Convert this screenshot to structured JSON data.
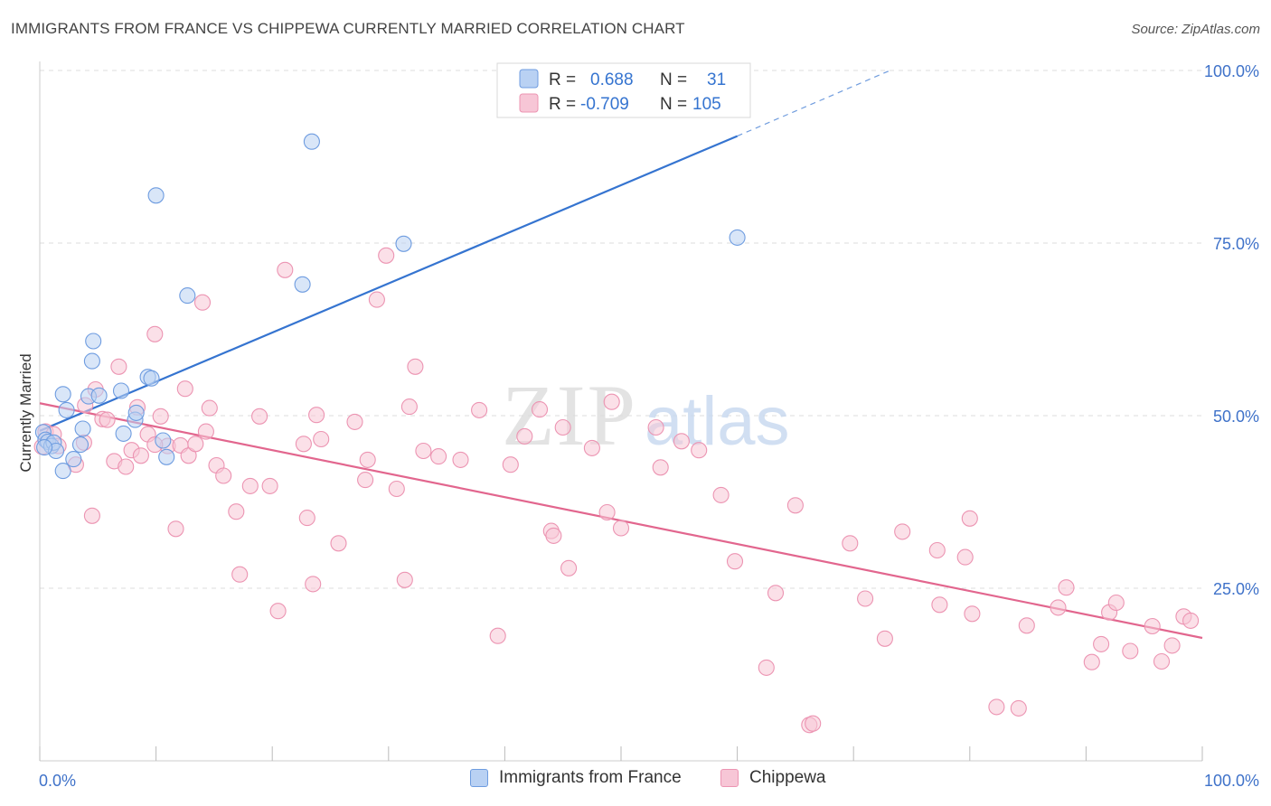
{
  "title": "IMMIGRANTS FROM FRANCE VS CHIPPEWA CURRENTLY MARRIED CORRELATION CHART",
  "source": "Source: ZipAtlas.com",
  "watermark": {
    "zip": "ZIP",
    "atlas": "atlas"
  },
  "colors": {
    "blue": "#3574d0",
    "blue_fill": "#b9d1f3",
    "blue_stroke": "#6e9ce0",
    "pink": "#e2668e",
    "pink_fill": "#f7c6d6",
    "pink_stroke": "#ec94b2",
    "axis_text": "#3f72c9",
    "grid": "#dddddd"
  },
  "legend_top": [
    {
      "r_label": "R = ",
      "r_value": "0.688",
      "n_label": "N = ",
      "n_value": "31",
      "color": "blue"
    },
    {
      "r_label": "R = ",
      "r_value": "-0.709",
      "n_label": "N = ",
      "n_value": "105",
      "color": "pink"
    }
  ],
  "legend_bottom": [
    {
      "label": "Immigrants from France",
      "color": "blue"
    },
    {
      "label": "Chippewa",
      "color": "pink"
    }
  ],
  "chart_data": {
    "type": "scatter",
    "xlabel": "",
    "ylabel": "Currently Married",
    "xlim": [
      0,
      100
    ],
    "ylim": [
      0,
      100
    ],
    "x_tick_labels": [
      "0.0%",
      "100.0%"
    ],
    "y_tick_labels": [
      {
        "value": 25,
        "label": "25.0%"
      },
      {
        "value": 50,
        "label": "50.0%"
      },
      {
        "value": 75,
        "label": "75.0%"
      },
      {
        "value": 100,
        "label": "100.0%"
      }
    ],
    "grid": true,
    "legend_position": "top-center",
    "series": [
      {
        "name": "Immigrants from France",
        "color": "blue",
        "trend": {
          "x0": 0,
          "y0": 47.8,
          "x1": 60,
          "y1": 90.5,
          "dash_to_x": 73,
          "dash_to_y": 99.9
        },
        "points": [
          [
            0.3,
            47.6
          ],
          [
            0.5,
            46.5
          ],
          [
            0.7,
            46.2
          ],
          [
            1.0,
            45.6
          ],
          [
            1.2,
            46.1
          ],
          [
            1.4,
            44.9
          ],
          [
            2.0,
            53.1
          ],
          [
            2.3,
            50.8
          ],
          [
            2.0,
            42.0
          ],
          [
            2.9,
            43.7
          ],
          [
            3.5,
            45.8
          ],
          [
            3.7,
            48.1
          ],
          [
            4.2,
            52.8
          ],
          [
            4.5,
            57.9
          ],
          [
            4.6,
            60.8
          ],
          [
            5.1,
            52.9
          ],
          [
            7.0,
            53.6
          ],
          [
            7.2,
            47.4
          ],
          [
            8.2,
            49.4
          ],
          [
            8.3,
            50.4
          ],
          [
            9.3,
            55.6
          ],
          [
            9.6,
            55.4
          ],
          [
            10.0,
            81.9
          ],
          [
            10.6,
            46.4
          ],
          [
            10.9,
            44.0
          ],
          [
            12.7,
            67.4
          ],
          [
            22.6,
            69.0
          ],
          [
            23.4,
            89.7
          ],
          [
            31.3,
            74.9
          ],
          [
            60.0,
            75.8
          ],
          [
            0.4,
            45.4
          ]
        ]
      },
      {
        "name": "Chippewa",
        "color": "pink",
        "trend": {
          "x0": 0,
          "y0": 51.8,
          "x1": 100,
          "y1": 17.8
        },
        "points": [
          [
            0.2,
            45.5
          ],
          [
            0.5,
            47.7
          ],
          [
            1.2,
            47.3
          ],
          [
            1.6,
            45.6
          ],
          [
            3.1,
            42.9
          ],
          [
            3.8,
            46.1
          ],
          [
            3.9,
            51.5
          ],
          [
            4.5,
            35.5
          ],
          [
            4.8,
            53.8
          ],
          [
            5.4,
            49.5
          ],
          [
            5.8,
            49.4
          ],
          [
            6.4,
            43.4
          ],
          [
            6.8,
            57.1
          ],
          [
            7.4,
            42.6
          ],
          [
            7.9,
            45.0
          ],
          [
            8.4,
            51.2
          ],
          [
            8.7,
            44.2
          ],
          [
            9.3,
            47.3
          ],
          [
            9.9,
            61.8
          ],
          [
            10.4,
            49.9
          ],
          [
            11.0,
            45.6
          ],
          [
            11.7,
            33.6
          ],
          [
            12.1,
            45.7
          ],
          [
            12.5,
            53.9
          ],
          [
            12.8,
            44.2
          ],
          [
            13.4,
            45.9
          ],
          [
            14.0,
            66.4
          ],
          [
            14.3,
            47.7
          ],
          [
            14.6,
            51.1
          ],
          [
            15.2,
            42.8
          ],
          [
            15.8,
            41.3
          ],
          [
            16.9,
            36.1
          ],
          [
            17.2,
            27.0
          ],
          [
            18.1,
            39.8
          ],
          [
            18.9,
            49.9
          ],
          [
            19.8,
            39.8
          ],
          [
            20.5,
            21.7
          ],
          [
            21.1,
            71.1
          ],
          [
            22.7,
            45.9
          ],
          [
            23.0,
            35.2
          ],
          [
            23.5,
            25.6
          ],
          [
            23.8,
            50.1
          ],
          [
            24.2,
            46.6
          ],
          [
            25.7,
            31.5
          ],
          [
            27.1,
            49.1
          ],
          [
            28.0,
            40.7
          ],
          [
            28.2,
            43.6
          ],
          [
            29.0,
            66.8
          ],
          [
            29.8,
            73.2
          ],
          [
            30.7,
            39.4
          ],
          [
            31.4,
            26.2
          ],
          [
            31.8,
            51.3
          ],
          [
            32.3,
            57.1
          ],
          [
            33.0,
            44.9
          ],
          [
            34.3,
            44.1
          ],
          [
            36.2,
            43.6
          ],
          [
            37.8,
            50.8
          ],
          [
            39.4,
            18.1
          ],
          [
            40.5,
            42.9
          ],
          [
            41.7,
            47.0
          ],
          [
            43.0,
            50.9
          ],
          [
            44.0,
            33.3
          ],
          [
            44.2,
            32.6
          ],
          [
            45.0,
            48.3
          ],
          [
            45.5,
            27.9
          ],
          [
            47.5,
            45.3
          ],
          [
            48.8,
            36.0
          ],
          [
            49.2,
            52.0
          ],
          [
            50.0,
            33.7
          ],
          [
            53.0,
            48.3
          ],
          [
            53.4,
            42.5
          ],
          [
            55.2,
            46.3
          ],
          [
            56.7,
            45.0
          ],
          [
            58.6,
            38.5
          ],
          [
            59.8,
            28.9
          ],
          [
            62.5,
            13.5
          ],
          [
            63.3,
            24.3
          ],
          [
            65.0,
            37.0
          ],
          [
            66.2,
            5.2
          ],
          [
            66.5,
            5.4
          ],
          [
            69.7,
            31.5
          ],
          [
            71.0,
            23.5
          ],
          [
            72.7,
            17.7
          ],
          [
            74.2,
            33.2
          ],
          [
            77.2,
            30.5
          ],
          [
            77.4,
            22.6
          ],
          [
            79.6,
            29.5
          ],
          [
            80.0,
            35.1
          ],
          [
            80.2,
            21.3
          ],
          [
            82.3,
            7.8
          ],
          [
            84.2,
            7.6
          ],
          [
            84.9,
            19.6
          ],
          [
            87.6,
            22.2
          ],
          [
            88.3,
            25.1
          ],
          [
            90.5,
            14.3
          ],
          [
            91.3,
            16.9
          ],
          [
            92.0,
            21.5
          ],
          [
            92.6,
            22.9
          ],
          [
            93.8,
            15.9
          ],
          [
            95.7,
            19.5
          ],
          [
            96.5,
            14.4
          ],
          [
            97.4,
            16.7
          ],
          [
            98.4,
            20.9
          ],
          [
            99.0,
            20.3
          ],
          [
            9.9,
            45.8
          ]
        ]
      }
    ]
  }
}
